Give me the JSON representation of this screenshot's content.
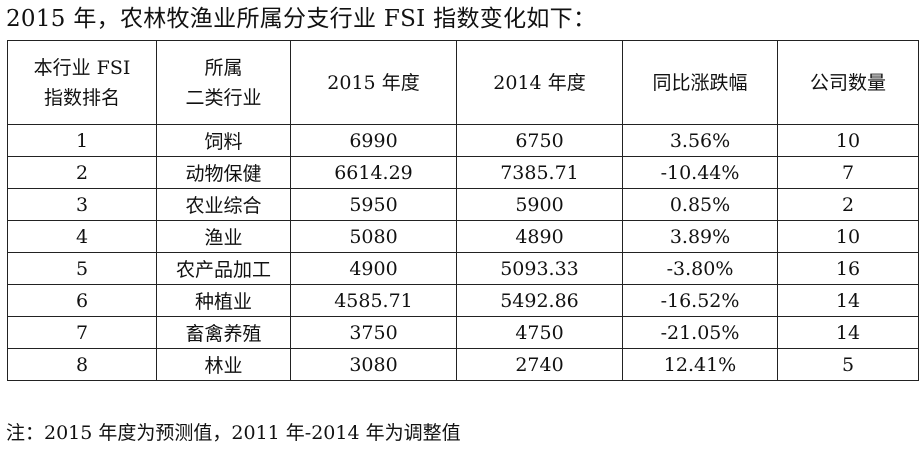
{
  "title": "2015 年，农林牧渔业所属分支行业 FSI 指数变化如下：",
  "table": {
    "headers": [
      {
        "line1": "本行业 FSI",
        "line2": "指数排名"
      },
      {
        "line1": "所属",
        "line2": "二类行业"
      },
      {
        "line1": "2015 年度",
        "line2": ""
      },
      {
        "line1": "2014 年度",
        "line2": ""
      },
      {
        "line1": "同比涨跌幅",
        "line2": ""
      },
      {
        "line1": "公司数量",
        "line2": ""
      }
    ],
    "rows": [
      [
        "1",
        "饲料",
        "6990",
        "6750",
        "3.56%",
        "10"
      ],
      [
        "2",
        "动物保健",
        "6614.29",
        "7385.71",
        "-10.44%",
        "7"
      ],
      [
        "3",
        "农业综合",
        "5950",
        "5900",
        "0.85%",
        "2"
      ],
      [
        "4",
        "渔业",
        "5080",
        "4890",
        "3.89%",
        "10"
      ],
      [
        "5",
        "农产品加工",
        "4900",
        "5093.33",
        "-3.80%",
        "16"
      ],
      [
        "6",
        "种植业",
        "4585.71",
        "5492.86",
        "-16.52%",
        "14"
      ],
      [
        "7",
        "畜禽养殖",
        "3750",
        "4750",
        "-21.05%",
        "14"
      ],
      [
        "8",
        "林业",
        "3080",
        "2740",
        "12.41%",
        "5"
      ]
    ]
  },
  "note": "注：2015 年度为预测值，2011 年-2014 年为调整值"
}
